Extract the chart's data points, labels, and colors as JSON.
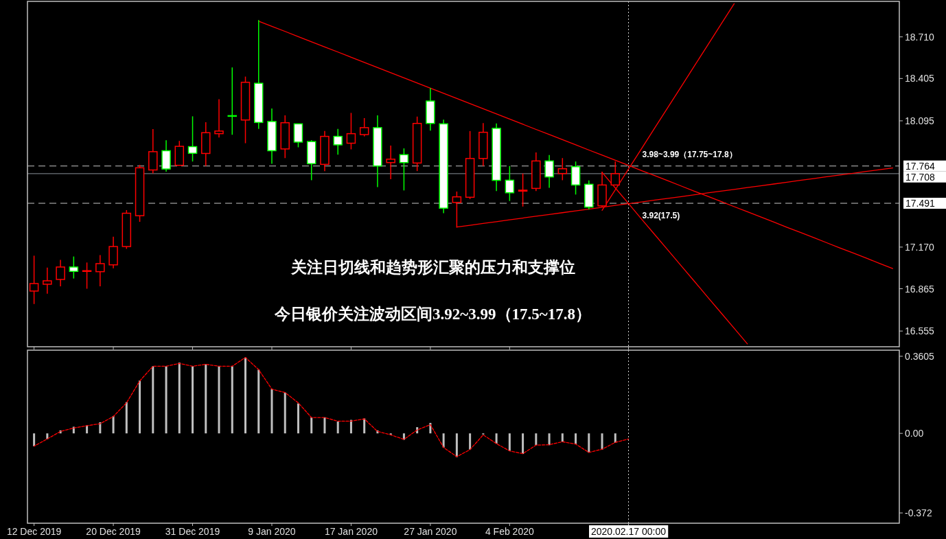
{
  "chart_data": [
    {
      "type": "candlestick",
      "ylim": [
        16.44,
        18.97
      ],
      "tick_labels": "y",
      "yticks": [
        {
          "value": 18.71,
          "label": "18.710"
        },
        {
          "value": 18.405,
          "label": "18.405"
        },
        {
          "value": 18.095,
          "label": "18.095"
        },
        {
          "value": 17.17,
          "label": "17.170"
        },
        {
          "value": 16.865,
          "label": "16.865"
        },
        {
          "value": 16.555,
          "label": "16.555"
        }
      ],
      "categories": [
        "12 Dec 2019",
        null,
        null,
        null,
        null,
        null,
        "20 Dec 2019",
        null,
        null,
        null,
        null,
        null,
        "31 Dec 2019",
        null,
        null,
        null,
        null,
        null,
        "9 Jan 2020",
        null,
        null,
        null,
        null,
        null,
        "17 Jan 2020",
        null,
        null,
        null,
        null,
        null,
        "27 Jan 2020",
        null,
        null,
        null,
        null,
        null,
        "4 Feb 2020",
        null,
        null,
        null,
        null,
        null,
        null,
        null,
        null,
        "2020.02.17 00:00",
        null,
        null,
        null,
        null,
        null,
        null,
        null,
        null,
        null,
        null,
        null,
        null,
        null,
        null,
        null,
        null,
        null,
        null,
        null,
        null
      ],
      "ohlc": [
        [
          16.848,
          17.107,
          16.753,
          16.903
        ],
        [
          16.898,
          17.02,
          16.828,
          16.923
        ],
        [
          16.933,
          17.076,
          16.883,
          17.024
        ],
        [
          17.024,
          17.101,
          16.94,
          16.992
        ],
        [
          16.992,
          17.057,
          16.865,
          16.997
        ],
        [
          16.99,
          17.112,
          16.883,
          17.049
        ],
        [
          17.04,
          17.246,
          17.015,
          17.174
        ],
        [
          17.174,
          17.441,
          17.157,
          17.418
        ],
        [
          17.4,
          17.772,
          17.355,
          17.751
        ],
        [
          17.735,
          18.035,
          17.71,
          17.869
        ],
        [
          17.876,
          17.953,
          17.722,
          17.742
        ],
        [
          17.769,
          17.948,
          17.769,
          17.908
        ],
        [
          17.906,
          18.128,
          17.797,
          17.857
        ],
        [
          17.856,
          18.085,
          17.764,
          18.008
        ],
        [
          18.001,
          18.253,
          17.973,
          18.02
        ],
        [
          18.133,
          18.486,
          17.993,
          18.13
        ],
        [
          18.101,
          18.419,
          17.931,
          18.377
        ],
        [
          18.37,
          18.833,
          18.036,
          18.083
        ],
        [
          18.09,
          18.185,
          17.781,
          17.876
        ],
        [
          17.889,
          18.135,
          17.822,
          18.081
        ],
        [
          18.073,
          18.073,
          17.901,
          17.939
        ],
        [
          17.943,
          17.953,
          17.66,
          17.781
        ],
        [
          17.776,
          18.02,
          17.727,
          17.981
        ],
        [
          17.981,
          18.036,
          17.847,
          17.919
        ],
        [
          17.931,
          18.153,
          17.886,
          18.001
        ],
        [
          17.994,
          18.115,
          17.981,
          18.045
        ],
        [
          18.045,
          18.135,
          17.61,
          17.764
        ],
        [
          17.789,
          17.914,
          17.667,
          17.814
        ],
        [
          17.847,
          17.893,
          17.585,
          17.789
        ],
        [
          17.786,
          18.126,
          17.727,
          18.076
        ],
        [
          18.24,
          18.335,
          18.023,
          18.076
        ],
        [
          18.073,
          18.103,
          17.418,
          17.455
        ],
        [
          17.497,
          17.577,
          17.313,
          17.538
        ],
        [
          17.535,
          18.02,
          17.522,
          17.819
        ],
        [
          17.819,
          18.078,
          17.764,
          18.011
        ],
        [
          18.04,
          18.076,
          17.58,
          17.659
        ],
        [
          17.66,
          17.764,
          17.508,
          17.568
        ],
        [
          17.58,
          17.709,
          17.467,
          17.587
        ],
        [
          17.6,
          17.864,
          17.58,
          17.801
        ],
        [
          17.801,
          17.844,
          17.605,
          17.684
        ],
        [
          17.709,
          17.822,
          17.66,
          17.744
        ],
        [
          17.759,
          17.797,
          17.555,
          17.625
        ],
        [
          17.63,
          17.659,
          17.446,
          17.463
        ],
        [
          17.472,
          17.722,
          17.463,
          17.625
        ],
        [
          17.625,
          17.797,
          17.622,
          17.708
        ],
        null,
        null,
        null,
        null,
        null,
        null,
        null,
        null,
        null,
        null,
        null,
        null,
        null,
        null,
        null,
        null,
        null,
        null,
        null,
        null,
        null
      ],
      "colors": [
        "#ff0000",
        "#ff0000",
        "#ff0000",
        "#00ff00",
        "#ff0000",
        "#ff0000",
        "#ff0000",
        "#ff0000",
        "#ff0000",
        "#ff0000",
        "#00ff00",
        "#ff0000",
        "#00ff00",
        "#ff0000",
        "#ff0000",
        "#00ff00",
        "#ff0000",
        "#00ff00",
        "#00ff00",
        "#ff0000",
        "#00ff00",
        "#00ff00",
        "#ff0000",
        "#00ff00",
        "#ff0000",
        "#ff0000",
        "#00ff00",
        "#ff0000",
        "#00ff00",
        "#ff0000",
        "#00ff00",
        "#00ff00",
        "#ff0000",
        "#ff0000",
        "#ff0000",
        "#00ff00",
        "#00ff00",
        "#ff0000",
        "#ff0000",
        "#00ff00",
        "#ff0000",
        "#00ff00",
        "#00ff00",
        "#ff0000",
        "#ff0000",
        null,
        null,
        null,
        null,
        null,
        null,
        null,
        null,
        null,
        null,
        null,
        null,
        null,
        null,
        null,
        null,
        null,
        null,
        null,
        null,
        null
      ],
      "series": [
        {
          "type": "line",
          "color": "#ff0000",
          "values": [
            null,
            null,
            null,
            null,
            null,
            null,
            null,
            null,
            null,
            null,
            null,
            null,
            null,
            null,
            null,
            null,
            null,
            18.825,
            18.787,
            18.75,
            18.712,
            18.674,
            18.636,
            18.599,
            18.561,
            18.523,
            18.485,
            18.448,
            18.41,
            18.372,
            18.334,
            18.297,
            18.259,
            18.221,
            18.183,
            18.146,
            18.108,
            18.07,
            18.032,
            17.995,
            17.957,
            17.919,
            17.881,
            17.844,
            17.806,
            17.768,
            17.73,
            17.693,
            17.655,
            17.617,
            17.579,
            17.542,
            17.504,
            17.466,
            17.429,
            17.391,
            17.353,
            17.315,
            17.278,
            17.24,
            17.202,
            17.164,
            17.127,
            17.089,
            17.051,
            17.013
          ]
        },
        {
          "type": "line",
          "color": "#ff0000",
          "values": [
            null,
            null,
            null,
            null,
            null,
            null,
            null,
            null,
            null,
            null,
            null,
            null,
            null,
            null,
            null,
            null,
            null,
            null,
            null,
            null,
            null,
            null,
            null,
            null,
            null,
            null,
            null,
            null,
            null,
            null,
            null,
            null,
            17.317,
            17.33,
            17.343,
            17.356,
            17.37,
            17.383,
            17.396,
            17.409,
            17.422,
            17.435,
            17.448,
            17.462,
            17.475,
            17.488,
            17.501,
            17.514,
            17.527,
            17.54,
            17.553,
            17.567,
            17.58,
            17.593,
            17.606,
            17.619,
            17.632,
            17.645,
            17.659,
            17.672,
            17.685,
            17.698,
            17.711,
            17.724,
            17.737,
            17.75
          ]
        },
        {
          "type": "line",
          "color": "#ff0000",
          "values": [
            null,
            null,
            null,
            null,
            null,
            null,
            null,
            null,
            null,
            null,
            null,
            null,
            null,
            null,
            null,
            null,
            null,
            null,
            null,
            null,
            null,
            null,
            null,
            null,
            null,
            null,
            null,
            null,
            null,
            null,
            null,
            null,
            null,
            null,
            null,
            null,
            null,
            null,
            null,
            null,
            null,
            null,
            null,
            17.439,
            17.59,
            17.742,
            17.893,
            18.045,
            18.196,
            18.347,
            18.499,
            18.65,
            18.802,
            18.953,
            null,
            null,
            null,
            null,
            null,
            null,
            null,
            null,
            null,
            null,
            null,
            null
          ]
        },
        {
          "type": "line",
          "color": "#ff0000",
          "values": [
            null,
            null,
            null,
            null,
            null,
            null,
            null,
            null,
            null,
            null,
            null,
            null,
            null,
            null,
            null,
            null,
            null,
            null,
            null,
            null,
            null,
            null,
            null,
            null,
            null,
            null,
            null,
            null,
            null,
            null,
            null,
            null,
            null,
            null,
            null,
            null,
            null,
            null,
            null,
            null,
            null,
            null,
            null,
            17.717,
            17.603,
            17.489,
            17.374,
            17.26,
            17.146,
            17.032,
            16.918,
            16.803,
            16.689,
            16.575,
            16.461,
            null,
            null,
            null,
            null,
            null,
            null,
            null,
            null,
            null,
            null,
            null
          ]
        }
      ],
      "ref_lines": [
        {
          "axis": "y",
          "value": 17.764,
          "label": "17.764",
          "color": "#c8c8c8",
          "line_style": "dashed"
        },
        {
          "axis": "y",
          "value": 17.708,
          "label": "17.708",
          "color": "#8a929a",
          "line_style": "solid"
        },
        {
          "axis": "y",
          "value": 17.491,
          "label": "17.491",
          "color": "#c8c8c8",
          "line_style": "dashed"
        },
        {
          "axis": "x",
          "value": "2020.02.17 00:00",
          "color": "#d0d0d0",
          "line_style": "dotted"
        }
      ],
      "annotations": [
        "关注日切线和趋势形汇聚的压力和支撑位",
        "今日银价关注波动区间3.92~3.99（17.5~17.8）",
        {
          "text": "3.98~3.99（17.75~17.8）",
          "x": "2020.02.17 00:00",
          "y": 17.764
        },
        {
          "text": "3.92(17.5)",
          "x": "2020.02.17 00:00",
          "y": 17.491
        }
      ]
    },
    {
      "type": "bar",
      "ylim": [
        -0.42,
        0.389
      ],
      "yticks": [
        {
          "value": 0.3605,
          "label": "0.3605"
        },
        {
          "value": 0,
          "label": "0.00"
        },
        {
          "value": -0.372,
          "label": "-0.372"
        }
      ],
      "categories": [
        "12 Dec 2019",
        null,
        null,
        null,
        null,
        null,
        "20 Dec 2019",
        null,
        null,
        null,
        null,
        null,
        "31 Dec 2019",
        null,
        null,
        null,
        null,
        null,
        "9 Jan 2020",
        null,
        null,
        null,
        null,
        null,
        "17 Jan 2020",
        null,
        null,
        null,
        null,
        null,
        "27 Jan 2020",
        null,
        null,
        null,
        null,
        null,
        "4 Feb 2020",
        null,
        null,
        null,
        null,
        null,
        null,
        null,
        null,
        "2020.02.17 00:00",
        null,
        null,
        null,
        null,
        null,
        null,
        null,
        null,
        null,
        null,
        null,
        null,
        null,
        null,
        null,
        null,
        null,
        null,
        null,
        null
      ],
      "series": [
        {
          "type": "bar",
          "color": "#c0c0c0",
          "values": [
            -0.06,
            -0.027,
            0.014,
            0.031,
            0.038,
            0.052,
            0.081,
            0.146,
            0.247,
            0.314,
            0.314,
            0.331,
            0.314,
            0.323,
            0.314,
            0.314,
            0.355,
            0.298,
            0.207,
            0.191,
            0.14,
            0.075,
            0.075,
            0.055,
            0.063,
            0.07,
            0.014,
            -0.006,
            -0.03,
            0.029,
            0.049,
            -0.066,
            -0.111,
            -0.076,
            -0.005,
            -0.048,
            -0.082,
            -0.096,
            -0.055,
            -0.055,
            -0.039,
            -0.05,
            -0.09,
            -0.076,
            -0.044,
            null,
            null,
            null,
            null,
            null,
            null,
            null,
            null,
            null,
            null,
            null,
            null,
            null,
            null,
            null,
            null,
            null,
            null,
            null,
            null,
            null
          ]
        },
        {
          "type": "line",
          "color": "#ff0000",
          "line_style": "dashed",
          "values": [
            -0.06,
            -0.026,
            0.009,
            0.025,
            0.036,
            0.045,
            0.079,
            0.143,
            0.245,
            0.314,
            0.314,
            0.327,
            0.314,
            0.323,
            0.314,
            0.314,
            0.355,
            0.298,
            0.207,
            0.191,
            0.143,
            0.074,
            0.074,
            0.057,
            0.057,
            0.068,
            0.009,
            -0.007,
            -0.028,
            0.016,
            0.041,
            -0.066,
            -0.109,
            -0.076,
            -0.007,
            -0.048,
            -0.082,
            -0.095,
            -0.055,
            -0.053,
            -0.039,
            -0.05,
            -0.089,
            -0.074,
            -0.042,
            -0.026,
            null,
            null,
            null,
            null,
            null,
            null,
            null,
            null,
            null,
            null,
            null,
            null,
            null,
            null,
            null,
            null,
            null,
            null,
            null,
            null
          ]
        }
      ],
      "ref_lines": [
        {
          "axis": "x",
          "value": "2020.02.17 00:00",
          "color": "#d0d0d0",
          "line_style": "dotted"
        }
      ]
    }
  ]
}
